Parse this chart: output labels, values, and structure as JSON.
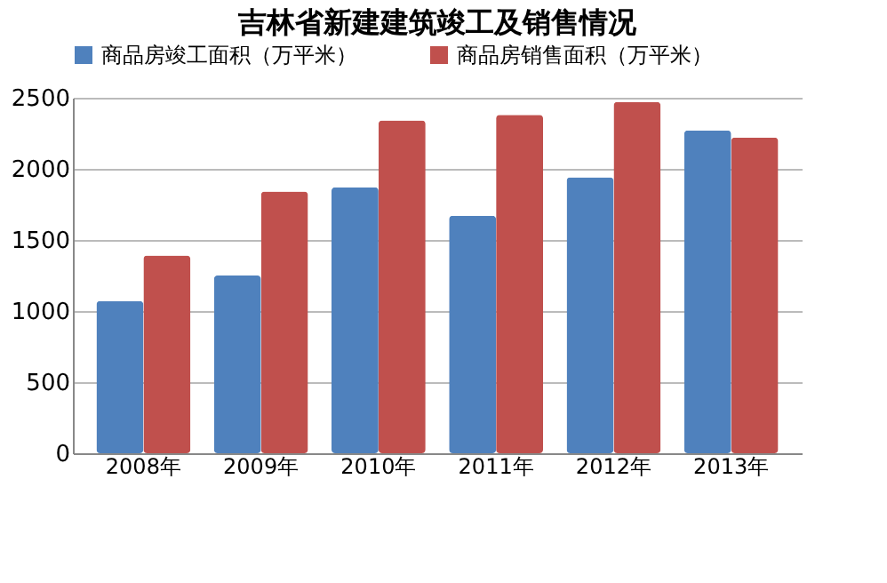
{
  "chart_data": {
    "type": "bar",
    "title": "吉林省新建建筑竣工及销售情况",
    "categories": [
      "2008年",
      "2009年",
      "2010年",
      "2011年",
      "2012年",
      "2013年"
    ],
    "series": [
      {
        "name": "商品房竣工面积（万平米）",
        "color": "#4f81bd",
        "values": [
          1070,
          1250,
          1870,
          1670,
          1940,
          2270
        ]
      },
      {
        "name": "商品房销售面积（万平米）",
        "color": "#c0504d",
        "values": [
          1390,
          1840,
          2340,
          2380,
          2470,
          2220
        ]
      }
    ],
    "ylim": [
      0,
      2500
    ],
    "yticks": [
      0,
      500,
      1000,
      1500,
      2000,
      2500
    ],
    "grid": "y",
    "legend": "top"
  }
}
